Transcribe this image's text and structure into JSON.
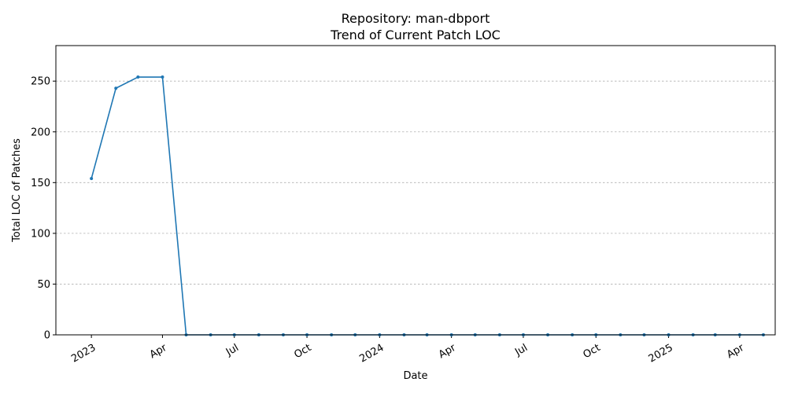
{
  "chart_data": {
    "type": "line",
    "title_line1": "Repository: man-dbport",
    "title_line2": "Trend of Current Patch LOC",
    "xlabel": "Date",
    "ylabel": "Total LOC of Patches",
    "ylim": [
      0,
      285
    ],
    "xlim": [
      "2022-11-17",
      "2025-05-16"
    ],
    "grid": "y-dashed",
    "line_color": "#1f77b4",
    "yticks": [
      0,
      50,
      100,
      150,
      200,
      250
    ],
    "xticks": [
      {
        "date": "2023-01-01",
        "label": "2023"
      },
      {
        "date": "2023-04-01",
        "label": "Apr"
      },
      {
        "date": "2023-07-01",
        "label": "Jul"
      },
      {
        "date": "2023-10-01",
        "label": "Oct"
      },
      {
        "date": "2024-01-01",
        "label": "2024"
      },
      {
        "date": "2024-04-01",
        "label": "Apr"
      },
      {
        "date": "2024-07-01",
        "label": "Jul"
      },
      {
        "date": "2024-10-01",
        "label": "Oct"
      },
      {
        "date": "2025-01-01",
        "label": "2025"
      },
      {
        "date": "2025-04-01",
        "label": "Apr"
      }
    ],
    "points": [
      {
        "x": "2023-01-01",
        "y": 154
      },
      {
        "x": "2023-02-01",
        "y": 243
      },
      {
        "x": "2023-03-01",
        "y": 254
      },
      {
        "x": "2023-04-01",
        "y": 254
      },
      {
        "x": "2023-05-01",
        "y": 0
      },
      {
        "x": "2023-06-01",
        "y": 0
      },
      {
        "x": "2023-07-01",
        "y": 0
      },
      {
        "x": "2023-08-01",
        "y": 0
      },
      {
        "x": "2023-09-01",
        "y": 0
      },
      {
        "x": "2023-10-01",
        "y": 0
      },
      {
        "x": "2023-11-01",
        "y": 0
      },
      {
        "x": "2023-12-01",
        "y": 0
      },
      {
        "x": "2024-01-01",
        "y": 0
      },
      {
        "x": "2024-02-01",
        "y": 0
      },
      {
        "x": "2024-03-01",
        "y": 0
      },
      {
        "x": "2024-04-01",
        "y": 0
      },
      {
        "x": "2024-05-01",
        "y": 0
      },
      {
        "x": "2024-06-01",
        "y": 0
      },
      {
        "x": "2024-07-01",
        "y": 0
      },
      {
        "x": "2024-08-01",
        "y": 0
      },
      {
        "x": "2024-09-01",
        "y": 0
      },
      {
        "x": "2024-10-01",
        "y": 0
      },
      {
        "x": "2024-11-01",
        "y": 0
      },
      {
        "x": "2024-12-01",
        "y": 0
      },
      {
        "x": "2025-01-01",
        "y": 0
      },
      {
        "x": "2025-02-01",
        "y": 0
      },
      {
        "x": "2025-03-01",
        "y": 0
      },
      {
        "x": "2025-04-01",
        "y": 0
      },
      {
        "x": "2025-05-01",
        "y": 0
      }
    ]
  }
}
